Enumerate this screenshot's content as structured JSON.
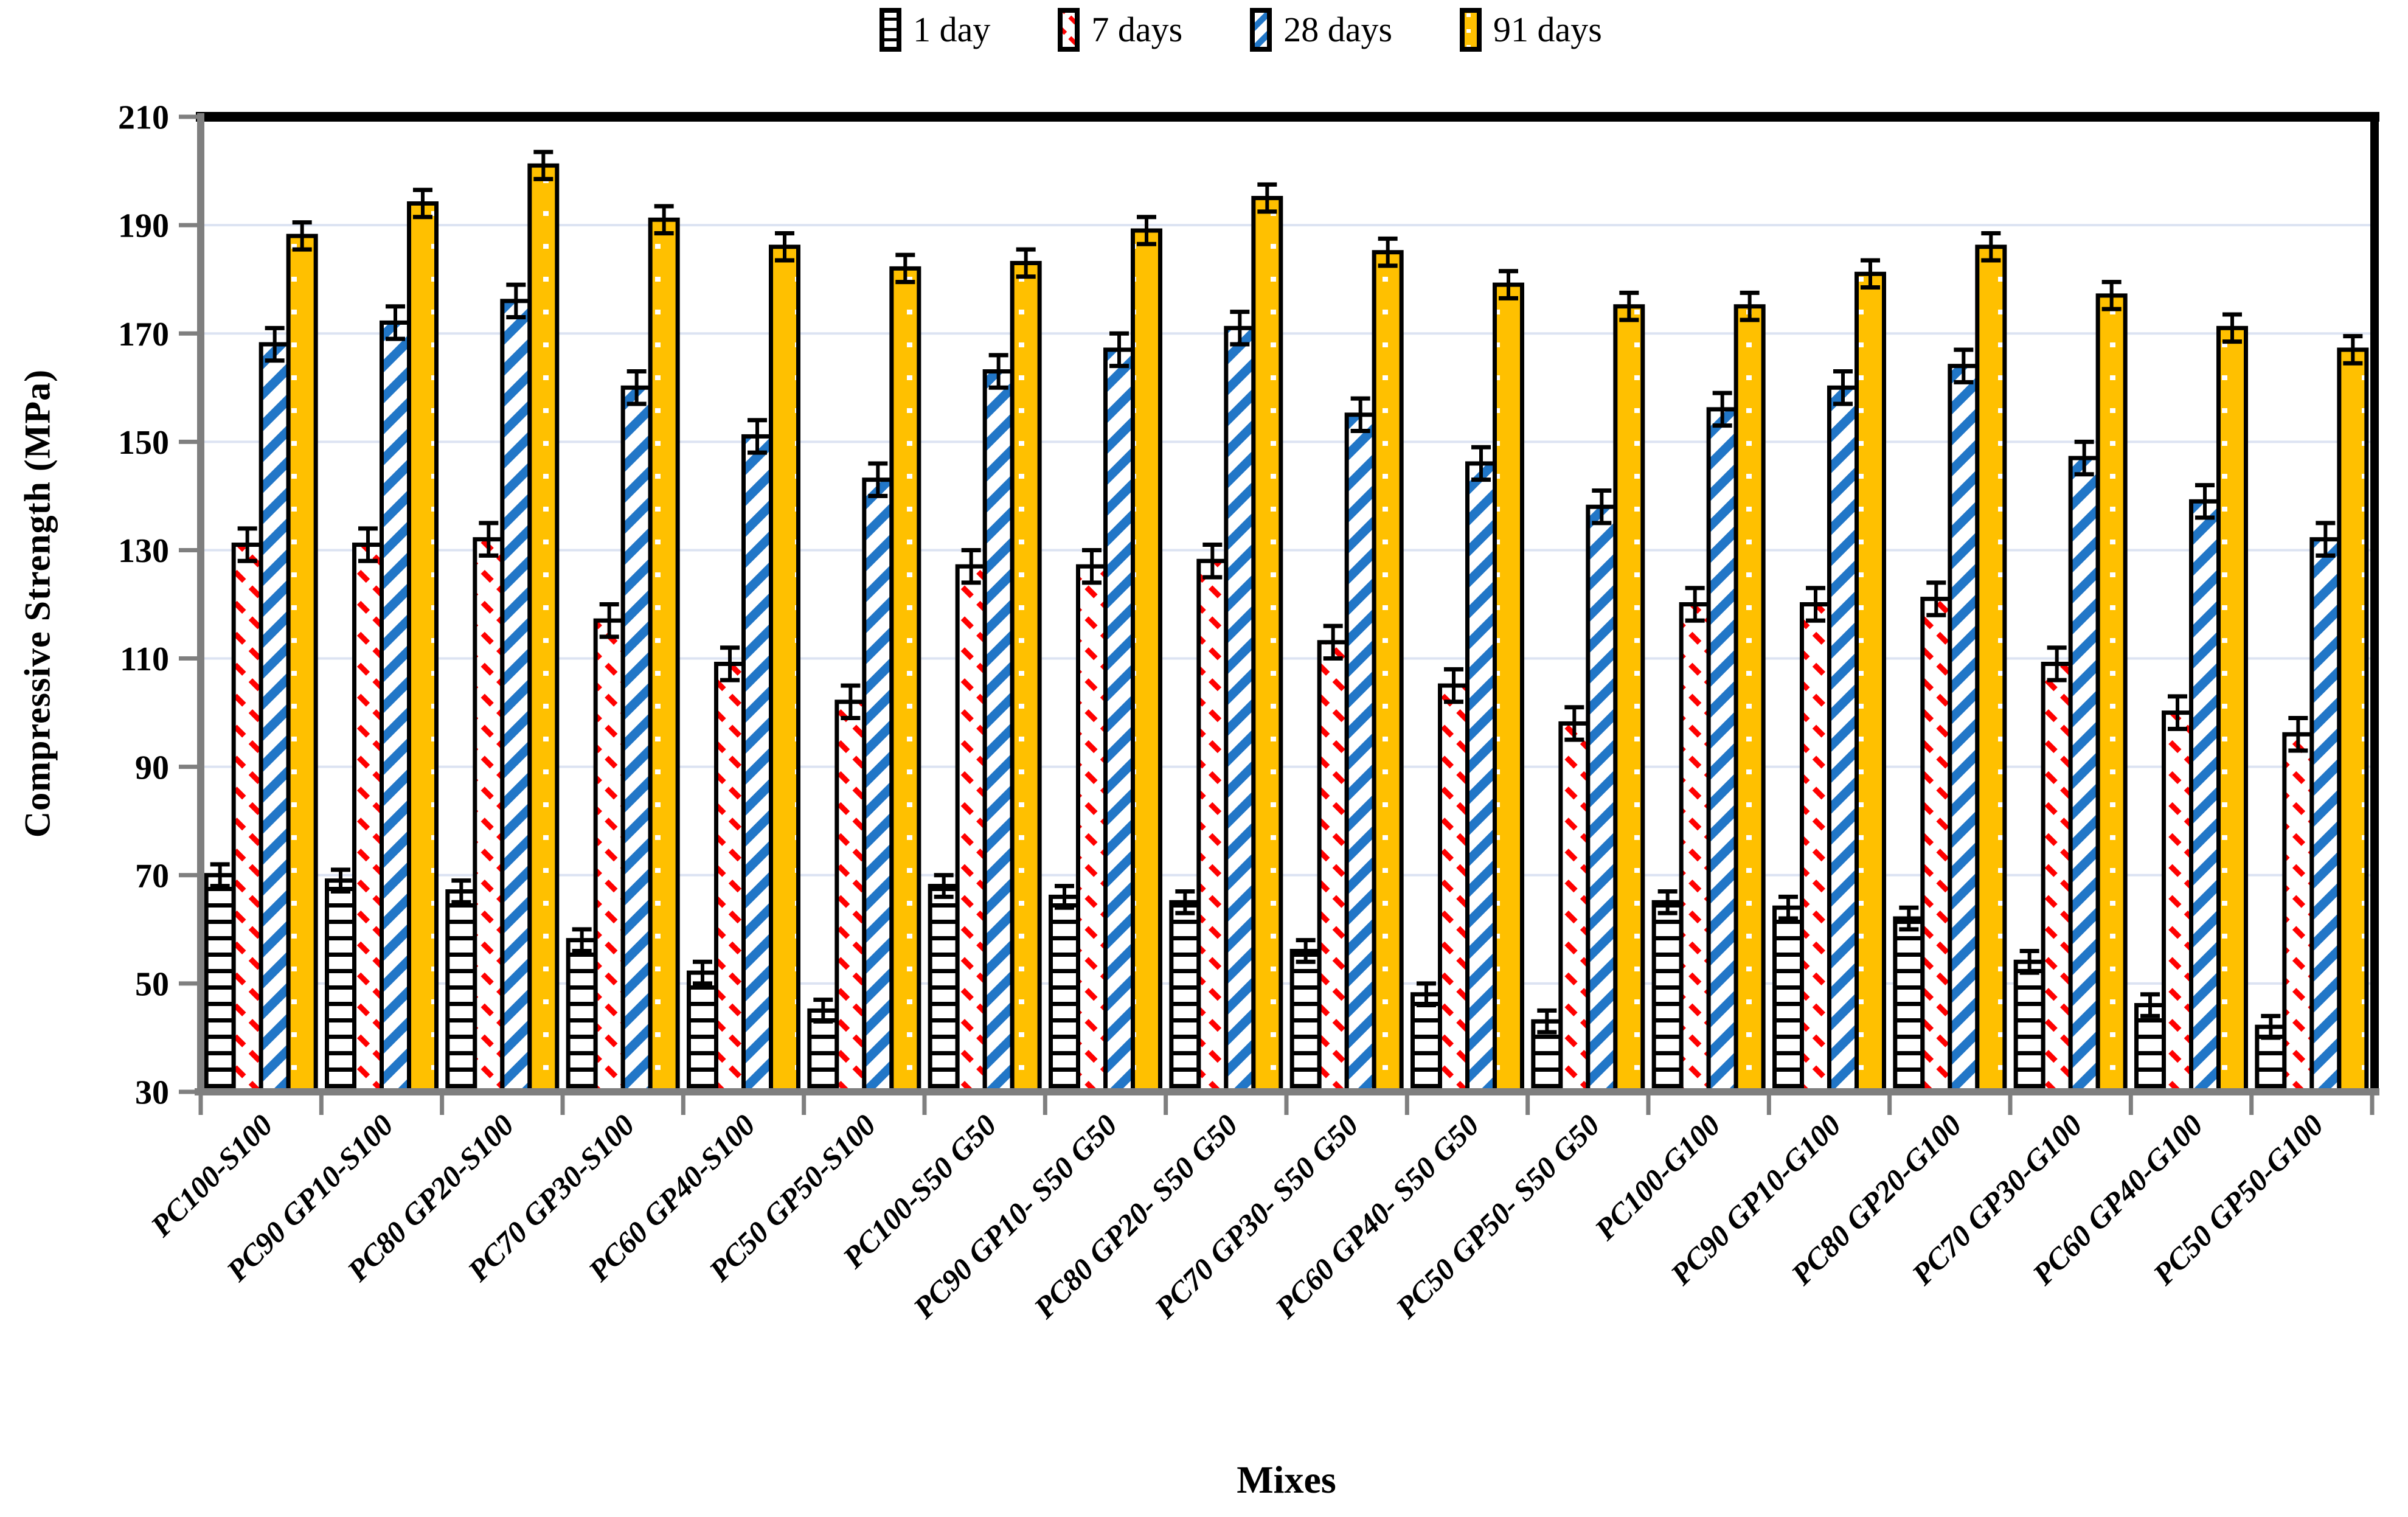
{
  "legend": {
    "items": [
      {
        "label": "1 day",
        "pattern": "horizontal-lines"
      },
      {
        "label": "7 days",
        "pattern": "red-diagonal-dashes"
      },
      {
        "label": "28 days",
        "pattern": "blue-diagonal-stripes"
      },
      {
        "label": "91 days",
        "pattern": "solid-gold-white-dots"
      }
    ]
  },
  "y_axis": {
    "title": "Compressive Strength (MPa)",
    "min": 30,
    "max": 210,
    "step": 20,
    "tick_labels": [
      "210",
      "190",
      "170",
      "150",
      "130",
      "110",
      "90",
      "70",
      "50",
      "30"
    ]
  },
  "x_axis": {
    "title": "Mixes"
  },
  "chart_data": {
    "type": "bar",
    "title": "",
    "xlabel": "Mixes",
    "ylabel": "Compressive Strength (MPa)",
    "ylim": [
      30,
      210
    ],
    "ytick_step": 20,
    "grid": true,
    "legend_position": "top",
    "error_bars": true,
    "categories": [
      "PC100-S100",
      "PC90 GP10-S100",
      "PC80 GP20-S100",
      "PC70 GP30-S100",
      "PC60 GP40-S100",
      "PC50 GP50-S100",
      "PC100-S50 G50",
      "PC90 GP10- S50 G50",
      "PC80 GP20- S50 G50",
      "PC70 GP30- S50 G50",
      "PC60 GP40- S50 G50",
      "PC50 GP50- S50 G50",
      "PC100-G100",
      "PC90 GP10-G100",
      "PC80 GP20-G100",
      "PC70 GP30-G100",
      "PC60 GP40-G100",
      "PC50 GP50-G100"
    ],
    "series": [
      {
        "name": "1 day",
        "error": 2,
        "values": [
          70,
          69,
          67,
          58,
          52,
          45,
          68,
          66,
          65,
          56,
          48,
          43,
          65,
          64,
          62,
          54,
          46,
          42
        ]
      },
      {
        "name": "7 days",
        "error": 3,
        "values": [
          131,
          131,
          132,
          117,
          109,
          102,
          127,
          127,
          128,
          113,
          105,
          98,
          120,
          120,
          121,
          109,
          100,
          96
        ]
      },
      {
        "name": "28 days",
        "error": 3,
        "values": [
          168,
          172,
          176,
          160,
          151,
          143,
          163,
          167,
          171,
          155,
          146,
          138,
          156,
          160,
          164,
          147,
          139,
          132
        ]
      },
      {
        "name": "91 days",
        "error": 2.5,
        "values": [
          188,
          194,
          201,
          191,
          186,
          182,
          183,
          189,
          195,
          185,
          179,
          175,
          175,
          181,
          186,
          177,
          171,
          167
        ]
      }
    ]
  },
  "colors": {
    "series_1day": "#000000",
    "series_7days": "#FF0000",
    "series_28days": "#2176C7",
    "series_91days": "#FFC000",
    "pattern_background": "#FFFFFF",
    "gridline": "#DCE3F2",
    "axis": "#7F7F7F",
    "frame": "#000000",
    "text": "#000000",
    "background": "#FFFFFF"
  }
}
